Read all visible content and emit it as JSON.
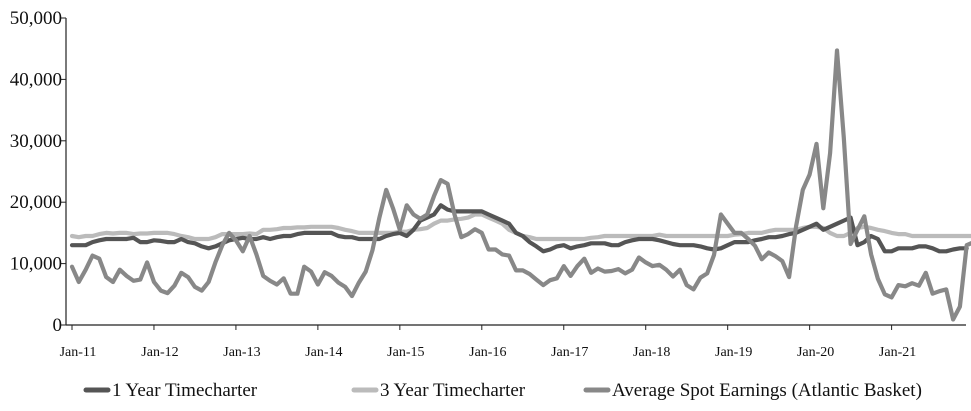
{
  "chart_data": {
    "type": "line",
    "title": "",
    "xlabel": "",
    "ylabel": "",
    "ylim": [
      0,
      50000
    ],
    "y_ticks": [
      {
        "value": 0,
        "label": "0"
      },
      {
        "value": 10000,
        "label": "10,000"
      },
      {
        "value": 20000,
        "label": "20,000"
      },
      {
        "value": 30000,
        "label": "30,000"
      },
      {
        "value": 40000,
        "label": "40,000"
      },
      {
        "value": 50000,
        "label": "50,000"
      }
    ],
    "x_start": "Jan-11",
    "x_ticks": [
      {
        "index": 0,
        "label": "Jan-11"
      },
      {
        "index": 12,
        "label": "Jan-12"
      },
      {
        "index": 24,
        "label": "Jan-13"
      },
      {
        "index": 36,
        "label": "Jan-14"
      },
      {
        "index": 48,
        "label": "Jan-15"
      },
      {
        "index": 60,
        "label": "Jan-16"
      },
      {
        "index": 72,
        "label": "Jan-17"
      },
      {
        "index": 84,
        "label": "Jan-18"
      },
      {
        "index": 96,
        "label": "Jan-19"
      },
      {
        "index": 108,
        "label": "Jan-20"
      },
      {
        "index": 120,
        "label": "Jan-21"
      }
    ],
    "grid": false,
    "legend": "bottom",
    "series": [
      {
        "name": "1 Year Timecharter",
        "color": "#555555",
        "values": [
          13000,
          13000,
          13000,
          13500,
          13800,
          14000,
          14000,
          14000,
          14000,
          14200,
          13500,
          13500,
          13800,
          13700,
          13500,
          13500,
          14000,
          13500,
          13300,
          12800,
          12500,
          12800,
          13300,
          13800,
          14000,
          14200,
          14000,
          14000,
          14300,
          14000,
          14300,
          14500,
          14500,
          14800,
          15000,
          15000,
          15000,
          15000,
          15000,
          14500,
          14300,
          14300,
          14000,
          14000,
          14000,
          14000,
          14500,
          14800,
          15000,
          14500,
          15500,
          17000,
          17500,
          18000,
          19500,
          18800,
          18500,
          18500,
          18500,
          18500,
          18500,
          18000,
          17500,
          17000,
          16500,
          15000,
          14500,
          13500,
          12800,
          12000,
          12300,
          12800,
          13000,
          12500,
          12800,
          13000,
          13300,
          13300,
          13300,
          13000,
          13000,
          13500,
          13800,
          14000,
          14000,
          14000,
          13800,
          13500,
          13200,
          13000,
          13000,
          13000,
          12800,
          12500,
          12300,
          12500,
          13000,
          13500,
          13500,
          13500,
          13800,
          14000,
          14300,
          14300,
          14500,
          14800,
          15000,
          15500,
          16000,
          16500,
          15500,
          16000,
          16500,
          17000,
          17500,
          13000,
          13500,
          14500,
          14000,
          12000,
          12000,
          12500,
          12500,
          12500,
          12800,
          12800,
          12500,
          12000,
          12000,
          12300,
          12500,
          12500
        ]
      },
      {
        "name": "3 Year Timecharter",
        "color": "#bbbbbb",
        "values": [
          14500,
          14300,
          14500,
          14500,
          14800,
          15000,
          14900,
          15000,
          15000,
          14800,
          14900,
          14900,
          15000,
          15000,
          15000,
          14800,
          14500,
          14300,
          14000,
          14000,
          14000,
          14300,
          14800,
          14800,
          14800,
          14800,
          14900,
          14800,
          15500,
          15500,
          15600,
          15800,
          15800,
          15900,
          15900,
          16000,
          16000,
          16000,
          16000,
          15800,
          15500,
          15300,
          15000,
          15000,
          15000,
          15000,
          15000,
          15000,
          15200,
          15200,
          15500,
          15600,
          15800,
          16500,
          17000,
          17000,
          17200,
          17300,
          17500,
          18000,
          18000,
          17500,
          17000,
          16500,
          15500,
          15000,
          14500,
          14300,
          14000,
          14000,
          14000,
          14000,
          14000,
          14000,
          14000,
          14000,
          14200,
          14300,
          14500,
          14500,
          14500,
          14500,
          14500,
          14500,
          14500,
          14500,
          14700,
          14500,
          14500,
          14500,
          14500,
          14500,
          14500,
          14500,
          14500,
          14500,
          14500,
          14700,
          14800,
          15000,
          15000,
          15000,
          15300,
          15500,
          15500,
          15500,
          15500,
          15800,
          16000,
          16000,
          15800,
          15000,
          14500,
          14500,
          15000,
          15800,
          16000,
          15800,
          15500,
          15300,
          15000,
          14800,
          14800,
          14500,
          14500,
          14500,
          14500,
          14500,
          14500,
          14500,
          14500,
          14500,
          14500
        ]
      },
      {
        "name": "Average Spot Earnings (Atlantic Basket)",
        "color": "#888888",
        "values": [
          9500,
          7000,
          9000,
          11300,
          10800,
          7800,
          7000,
          9000,
          8000,
          7200,
          7400,
          10200,
          7000,
          5600,
          5200,
          6400,
          8500,
          7800,
          6200,
          5600,
          7000,
          10200,
          13000,
          15000,
          13800,
          12000,
          14500,
          11500,
          8000,
          7200,
          6600,
          7600,
          5100,
          5100,
          9500,
          8700,
          6600,
          8600,
          8000,
          6900,
          6200,
          4700,
          6900,
          8700,
          12200,
          17500,
          22000,
          19000,
          15500,
          19500,
          18000,
          17300,
          18000,
          21000,
          23600,
          23000,
          18000,
          14300,
          14800,
          15600,
          15000,
          12300,
          12300,
          11500,
          11300,
          8900,
          8900,
          8300,
          7400,
          6500,
          7300,
          7600,
          9600,
          8000,
          9600,
          10800,
          8500,
          9200,
          8700,
          8800,
          9100,
          8400,
          9000,
          11000,
          10200,
          9600,
          9800,
          9000,
          7900,
          9000,
          6500,
          5800,
          7700,
          8400,
          11400,
          18000,
          16500,
          15000,
          15000,
          14000,
          12900,
          10700,
          11800,
          11200,
          10400,
          7800,
          16000,
          22000,
          24500,
          29500,
          19000,
          28000,
          44700,
          30500,
          13200,
          15500,
          17700,
          11500,
          7500,
          5000,
          4500,
          6500,
          6300,
          6800,
          6400,
          8500,
          5100,
          5500,
          5800,
          900,
          3000,
          13000,
          13500
        ]
      }
    ]
  }
}
